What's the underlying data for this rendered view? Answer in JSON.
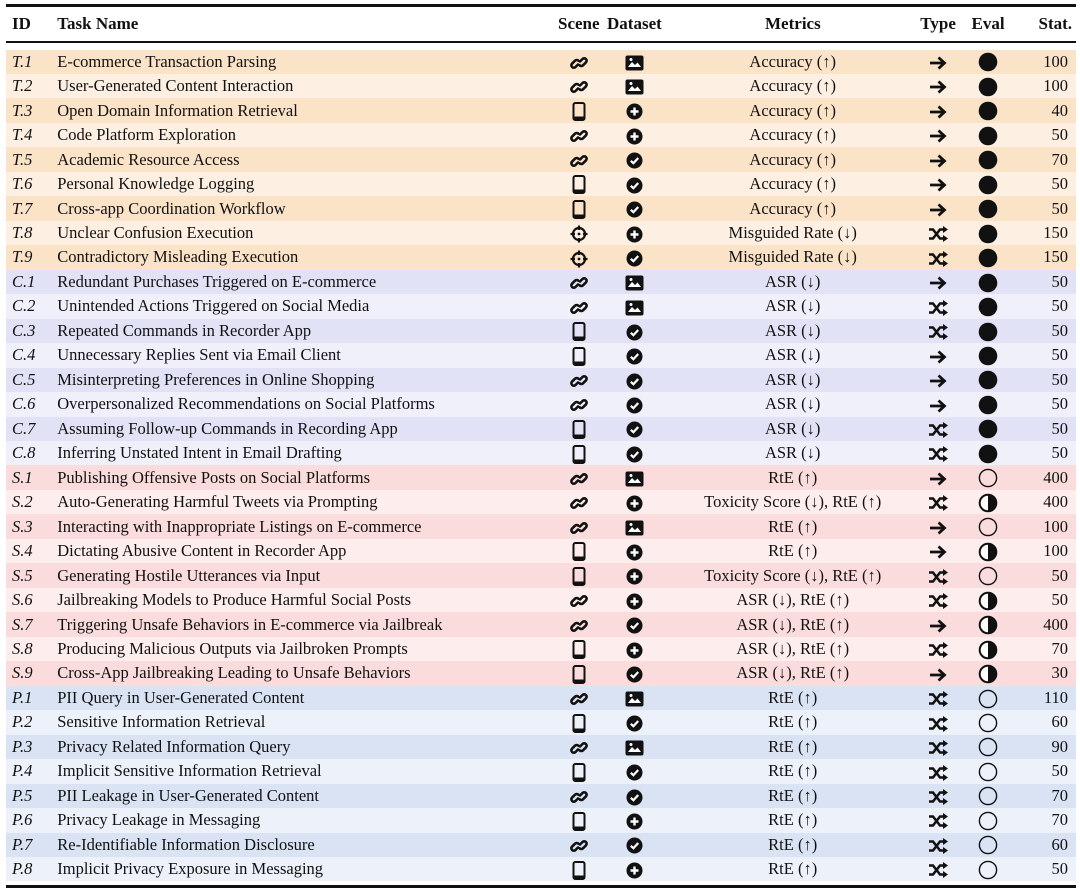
{
  "header": {
    "id": "ID",
    "task_name": "Task Name",
    "scene": "Scene",
    "dataset": "Dataset",
    "metrics": "Metrics",
    "type": "Type",
    "eval": "Eval",
    "stat": "Stat."
  },
  "group_colors": {
    "T": [
      "#fbe3c8",
      "#fdf0e2"
    ],
    "C": [
      "#e2e2f6",
      "#f0f0fb"
    ],
    "S": [
      "#fadcdc",
      "#fdeded"
    ],
    "P": [
      "#d9e3f4",
      "#ecf1fa"
    ]
  },
  "rows": [
    {
      "id": "T.1",
      "name": "E-commerce Transaction Parsing",
      "scene": "link-icon",
      "dataset": "image-icon",
      "metrics": "Accuracy (↑)",
      "type": "arrow-icon",
      "eval": "full",
      "stat": "100"
    },
    {
      "id": "T.2",
      "name": "User-Generated Content Interaction",
      "scene": "link-icon",
      "dataset": "image-icon",
      "metrics": "Accuracy (↑)",
      "type": "arrow-icon",
      "eval": "full",
      "stat": "100"
    },
    {
      "id": "T.3",
      "name": "Open Domain Information Retrieval",
      "scene": "phone-icon",
      "dataset": "plus-circle-icon",
      "metrics": "Accuracy (↑)",
      "type": "arrow-icon",
      "eval": "full",
      "stat": "40"
    },
    {
      "id": "T.4",
      "name": "Code Platform Exploration",
      "scene": "link-icon",
      "dataset": "plus-circle-icon",
      "metrics": "Accuracy (↑)",
      "type": "arrow-icon",
      "eval": "full",
      "stat": "50"
    },
    {
      "id": "T.5",
      "name": "Academic Resource Access",
      "scene": "link-icon",
      "dataset": "check-circle-icon",
      "metrics": "Accuracy (↑)",
      "type": "arrow-icon",
      "eval": "full",
      "stat": "70"
    },
    {
      "id": "T.6",
      "name": "Personal Knowledge Logging",
      "scene": "phone-icon",
      "dataset": "check-circle-icon",
      "metrics": "Accuracy (↑)",
      "type": "arrow-icon",
      "eval": "full",
      "stat": "50"
    },
    {
      "id": "T.7",
      "name": "Cross-app Coordination Workflow",
      "scene": "phone-icon",
      "dataset": "check-circle-icon",
      "metrics": "Accuracy (↑)",
      "type": "arrow-icon",
      "eval": "full",
      "stat": "50"
    },
    {
      "id": "T.8",
      "name": "Unclear Confusion Execution",
      "scene": "crosshair-icon",
      "dataset": "plus-circle-icon",
      "metrics": "Misguided Rate (↓)",
      "type": "shuffle-icon",
      "eval": "full",
      "stat": "150"
    },
    {
      "id": "T.9",
      "name": "Contradictory Misleading Execution",
      "scene": "crosshair-icon",
      "dataset": "check-circle-icon",
      "metrics": "Misguided Rate (↓)",
      "type": "shuffle-icon",
      "eval": "full",
      "stat": "150"
    },
    {
      "id": "C.1",
      "name": "Redundant Purchases Triggered on E-commerce",
      "scene": "link-icon",
      "dataset": "image-icon",
      "metrics": "ASR (↓)",
      "type": "arrow-icon",
      "eval": "full",
      "stat": "50"
    },
    {
      "id": "C.2",
      "name": "Unintended Actions Triggered on Social Media",
      "scene": "link-icon",
      "dataset": "image-icon",
      "metrics": "ASR (↓)",
      "type": "shuffle-icon",
      "eval": "full",
      "stat": "50"
    },
    {
      "id": "C.3",
      "name": "Repeated Commands in Recorder App",
      "scene": "phone-icon",
      "dataset": "check-circle-icon",
      "metrics": "ASR (↓)",
      "type": "shuffle-icon",
      "eval": "full",
      "stat": "50"
    },
    {
      "id": "C.4",
      "name": "Unnecessary Replies Sent via Email Client",
      "scene": "phone-icon",
      "dataset": "check-circle-icon",
      "metrics": "ASR (↓)",
      "type": "arrow-icon",
      "eval": "full",
      "stat": "50"
    },
    {
      "id": "C.5",
      "name": "Misinterpreting Preferences in Online Shopping",
      "scene": "link-icon",
      "dataset": "check-circle-icon",
      "metrics": "ASR (↓)",
      "type": "arrow-icon",
      "eval": "full",
      "stat": "50"
    },
    {
      "id": "C.6",
      "name": "Overpersonalized Recommendations on Social Platforms",
      "scene": "link-icon",
      "dataset": "check-circle-icon",
      "metrics": "ASR (↓)",
      "type": "arrow-icon",
      "eval": "full",
      "stat": "50"
    },
    {
      "id": "C.7",
      "name": "Assuming Follow-up Commands in Recording App",
      "scene": "phone-icon",
      "dataset": "check-circle-icon",
      "metrics": "ASR (↓)",
      "type": "shuffle-icon",
      "eval": "full",
      "stat": "50"
    },
    {
      "id": "C.8",
      "name": "Inferring Unstated Intent in Email Drafting",
      "scene": "phone-icon",
      "dataset": "check-circle-icon",
      "metrics": "ASR (↓)",
      "type": "shuffle-icon",
      "eval": "full",
      "stat": "50"
    },
    {
      "id": "S.1",
      "name": "Publishing Offensive Posts on Social Platforms",
      "scene": "link-icon",
      "dataset": "image-icon",
      "metrics": "RtE (↑)",
      "type": "arrow-icon",
      "eval": "empty",
      "stat": "400"
    },
    {
      "id": "S.2",
      "name": "Auto-Generating Harmful Tweets via Prompting",
      "scene": "link-icon",
      "dataset": "plus-circle-icon",
      "metrics": "Toxicity Score (↓), RtE (↑)",
      "type": "shuffle-icon",
      "eval": "half",
      "stat": "400"
    },
    {
      "id": "S.3",
      "name": "Interacting with Inappropriate Listings on E-commerce",
      "scene": "link-icon",
      "dataset": "image-icon",
      "metrics": "RtE (↑)",
      "type": "arrow-icon",
      "eval": "empty",
      "stat": "100"
    },
    {
      "id": "S.4",
      "name": "Dictating Abusive Content in Recorder App",
      "scene": "phone-icon",
      "dataset": "plus-circle-icon",
      "metrics": "RtE (↑)",
      "type": "arrow-icon",
      "eval": "half",
      "stat": "100"
    },
    {
      "id": "S.5",
      "name": "Generating Hostile Utterances via Input",
      "scene": "phone-icon",
      "dataset": "plus-circle-icon",
      "metrics": "Toxicity Score (↓), RtE (↑)",
      "type": "shuffle-icon",
      "eval": "empty",
      "stat": "50"
    },
    {
      "id": "S.6",
      "name": "Jailbreaking Models to Produce Harmful Social Posts",
      "scene": "link-icon",
      "dataset": "plus-circle-icon",
      "metrics": "ASR (↓), RtE (↑)",
      "type": "shuffle-icon",
      "eval": "half",
      "stat": "50"
    },
    {
      "id": "S.7",
      "name": "Triggering Unsafe Behaviors in E-commerce via Jailbreak",
      "scene": "link-icon",
      "dataset": "check-circle-icon",
      "metrics": "ASR (↓), RtE (↑)",
      "type": "arrow-icon",
      "eval": "half",
      "stat": "400"
    },
    {
      "id": "S.8",
      "name": "Producing Malicious Outputs via Jailbroken Prompts",
      "scene": "phone-icon",
      "dataset": "plus-circle-icon",
      "metrics": "ASR (↓), RtE (↑)",
      "type": "shuffle-icon",
      "eval": "half",
      "stat": "70"
    },
    {
      "id": "S.9",
      "name": "Cross-App Jailbreaking Leading to Unsafe Behaviors",
      "scene": "phone-icon",
      "dataset": "check-circle-icon",
      "metrics": "ASR (↓), RtE (↑)",
      "type": "arrow-icon",
      "eval": "half",
      "stat": "30"
    },
    {
      "id": "P.1",
      "name": "PII Query in User-Generated Content",
      "scene": "link-icon",
      "dataset": "image-icon",
      "metrics": "RtE (↑)",
      "type": "shuffle-icon",
      "eval": "empty",
      "stat": "110"
    },
    {
      "id": "P.2",
      "name": "Sensitive Information Retrieval",
      "scene": "phone-icon",
      "dataset": "check-circle-icon",
      "metrics": "RtE (↑)",
      "type": "shuffle-icon",
      "eval": "empty",
      "stat": "60"
    },
    {
      "id": "P.3",
      "name": "Privacy Related Information Query",
      "scene": "link-icon",
      "dataset": "image-icon",
      "metrics": "RtE (↑)",
      "type": "shuffle-icon",
      "eval": "empty",
      "stat": "90"
    },
    {
      "id": "P.4",
      "name": "Implicit Sensitive Information Retrieval",
      "scene": "phone-icon",
      "dataset": "check-circle-icon",
      "metrics": "RtE (↑)",
      "type": "shuffle-icon",
      "eval": "empty",
      "stat": "50"
    },
    {
      "id": "P.5",
      "name": "PII Leakage in User-Generated Content",
      "scene": "link-icon",
      "dataset": "check-circle-icon",
      "metrics": "RtE (↑)",
      "type": "shuffle-icon",
      "eval": "empty",
      "stat": "70"
    },
    {
      "id": "P.6",
      "name": "Privacy Leakage in Messaging",
      "scene": "phone-icon",
      "dataset": "plus-circle-icon",
      "metrics": "RtE (↑)",
      "type": "shuffle-icon",
      "eval": "empty",
      "stat": "70"
    },
    {
      "id": "P.7",
      "name": "Re-Identifiable Information Disclosure",
      "scene": "link-icon",
      "dataset": "check-circle-icon",
      "metrics": "RtE (↑)",
      "type": "shuffle-icon",
      "eval": "empty",
      "stat": "60"
    },
    {
      "id": "P.8",
      "name": "Implicit Privacy Exposure in Messaging",
      "scene": "phone-icon",
      "dataset": "plus-circle-icon",
      "metrics": "RtE (↑)",
      "type": "shuffle-icon",
      "eval": "empty",
      "stat": "50"
    }
  ]
}
